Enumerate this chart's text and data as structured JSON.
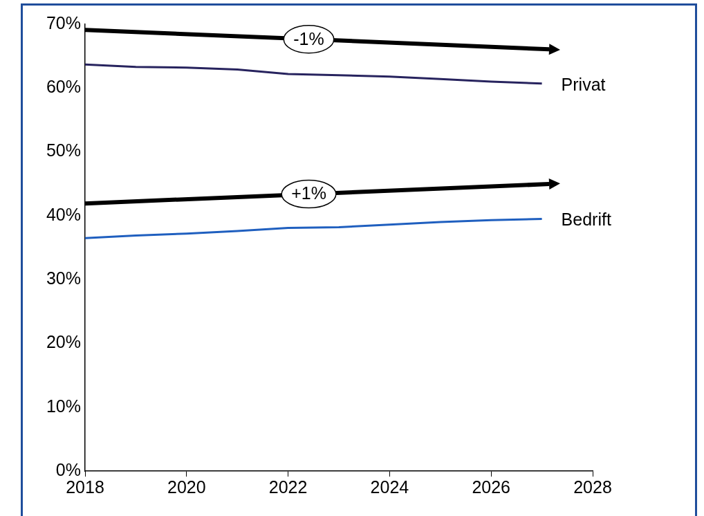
{
  "chart_data": {
    "type": "line",
    "x": [
      2018,
      2019,
      2020,
      2021,
      2022,
      2023,
      2024,
      2025,
      2026,
      2027
    ],
    "series": [
      {
        "name": "Privat",
        "color": "#27235e",
        "values": [
          63.7,
          63.3,
          63.2,
          62.9,
          62.2,
          62.0,
          61.8,
          61.4,
          61.0,
          60.7
        ]
      },
      {
        "name": "Bedrift",
        "color": "#1f5fbf",
        "values": [
          36.5,
          36.9,
          37.2,
          37.6,
          38.1,
          38.2,
          38.6,
          39.0,
          39.3,
          39.5
        ]
      }
    ],
    "xlim": [
      2018,
      2028
    ],
    "xticks": [
      2018,
      2020,
      2022,
      2024,
      2026,
      2028
    ],
    "ylim": [
      0,
      70
    ],
    "yticks": [
      {
        "value": 0,
        "label": "0%"
      },
      {
        "value": 10,
        "label": "10%"
      },
      {
        "value": 20,
        "label": "20%"
      },
      {
        "value": 30,
        "label": "30%"
      },
      {
        "value": 40,
        "label": "40%"
      },
      {
        "value": 50,
        "label": "50%"
      },
      {
        "value": 60,
        "label": "60%"
      },
      {
        "value": 70,
        "label": "70%"
      }
    ],
    "annotations": [
      "-1%",
      "+1%"
    ],
    "grid": false,
    "legend": false,
    "marker": "none",
    "line_style": "solid"
  }
}
